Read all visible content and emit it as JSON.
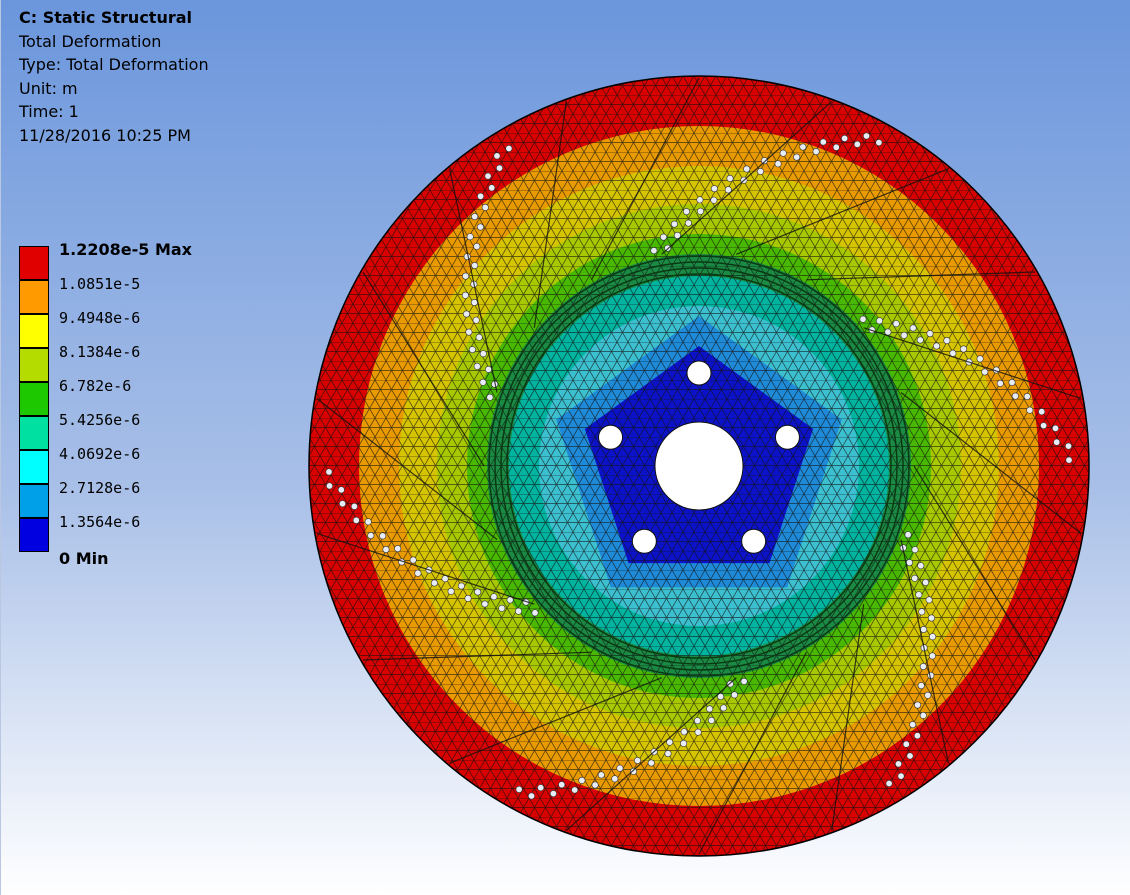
{
  "window": {
    "background_top": "#6b96dc",
    "background_bottom": "#ffffff"
  },
  "info": {
    "title": "C: Static Structural",
    "result": "Total Deformation",
    "type": "Type: Total Deformation",
    "unit": "Unit: m",
    "time": "Time: 1",
    "timestamp": "11/28/2016 10:25 PM"
  },
  "legend": {
    "max_label": "1.2208e-5 Max",
    "min_label": "0 Min",
    "intermediate_labels": [
      "1.0851e-5",
      "9.4948e-6",
      "8.1384e-6",
      "6.782e-6",
      "5.4256e-6",
      "4.0692e-6",
      "2.7128e-6",
      "1.3564e-6"
    ],
    "colors": [
      "#e00000",
      "#ff9a00",
      "#ffff00",
      "#b4dc00",
      "#1ec800",
      "#00e0a0",
      "#00ffff",
      "#00a0e8",
      "#0000e0"
    ]
  },
  "model": {
    "name": "brake-rotor",
    "zone_colors": [
      "#d80000",
      "#e89a00",
      "#d6c400",
      "#a8c800",
      "#48b800",
      "#1a8a44",
      "#00b4a0",
      "#3cc0d0",
      "#1e8ad8",
      "#0c12c8"
    ]
  }
}
